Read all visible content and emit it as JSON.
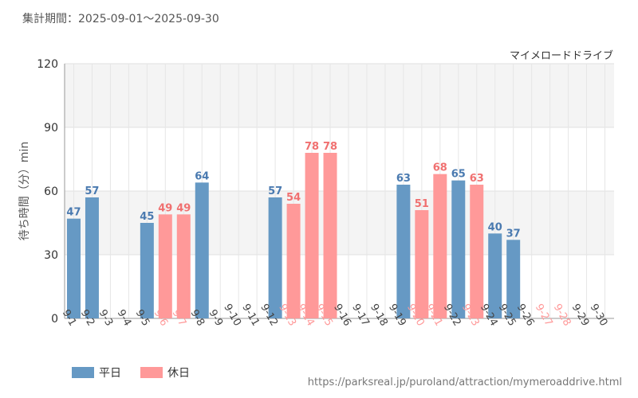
{
  "header": {
    "period": "集計期間：2025-09-01〜2025-09-30"
  },
  "legend": {
    "weekday": "平日",
    "holiday": "休日"
  },
  "footer": {
    "source": "https://parksreal.jp/puroland/attraction/mymeroaddrive.html"
  },
  "colors": {
    "weekday": "#6699c4",
    "holiday": "#ff9999",
    "weekday_label": "#4a7ab0",
    "holiday_label": "#f07070"
  },
  "chart_data": {
    "type": "bar",
    "title": "マイメロードドライブ",
    "xlabel": "",
    "ylabel": "待ち時間（分）min",
    "ylim": [
      0,
      120
    ],
    "yticks": [
      0,
      30,
      60,
      90,
      120
    ],
    "grid": true,
    "legend_position": "bottom-left",
    "categories": [
      "9-1",
      "9-2",
      "9-3",
      "9-4",
      "9-5",
      "9-6",
      "9-7",
      "9-8",
      "9-9",
      "9-10",
      "9-11",
      "9-12",
      "9-13",
      "9-14",
      "9-15",
      "9-16",
      "9-17",
      "9-18",
      "9-19",
      "9-20",
      "9-21",
      "9-22",
      "9-23",
      "9-24",
      "9-25",
      "9-26",
      "9-27",
      "9-28",
      "9-29",
      "9-30"
    ],
    "day_types": [
      "weekday",
      "weekday",
      "weekday",
      "weekday",
      "weekday",
      "holiday",
      "holiday",
      "weekday",
      "weekday",
      "weekday",
      "weekday",
      "weekday",
      "holiday",
      "holiday",
      "holiday",
      "weekday",
      "weekday",
      "weekday",
      "weekday",
      "holiday",
      "holiday",
      "weekday",
      "holiday",
      "weekday",
      "weekday",
      "weekday",
      "holiday",
      "holiday",
      "weekday",
      "weekday"
    ],
    "values": [
      47,
      57,
      null,
      null,
      45,
      49,
      49,
      64,
      null,
      null,
      null,
      57,
      54,
      78,
      78,
      null,
      null,
      null,
      63,
      51,
      68,
      65,
      63,
      40,
      37,
      null,
      null,
      null,
      null,
      null
    ]
  }
}
